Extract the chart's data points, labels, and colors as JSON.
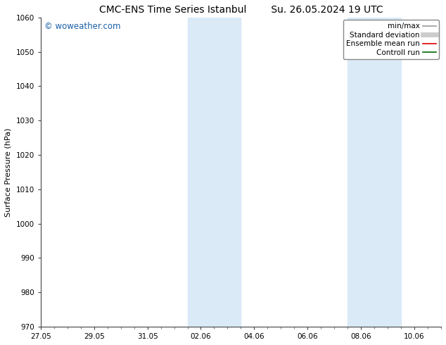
{
  "title_left": "CMC-ENS Time Series Istanbul",
  "title_right": "Su. 26.05.2024 19 UTC",
  "ylabel": "Surface Pressure (hPa)",
  "ylim": [
    970,
    1060
  ],
  "yticks": [
    970,
    980,
    990,
    1000,
    1010,
    1020,
    1030,
    1040,
    1050,
    1060
  ],
  "xtick_labels": [
    "27.05",
    "29.05",
    "31.05",
    "02.06",
    "04.06",
    "06.06",
    "08.06",
    "10.06"
  ],
  "xtick_positions": [
    0,
    2,
    4,
    6,
    8,
    10,
    12,
    14
  ],
  "xlim": [
    0,
    15
  ],
  "shaded_bands": [
    {
      "start": 5.5,
      "end": 7.5
    },
    {
      "start": 11.5,
      "end": 13.5
    }
  ],
  "shaded_color": "#daeaf7",
  "watermark_text": "© woweather.com",
  "watermark_color": "#1a5fa8",
  "legend_items": [
    {
      "label": "min/max",
      "color": "#999999",
      "lw": 1.2
    },
    {
      "label": "Standard deviation",
      "color": "#cccccc",
      "lw": 5
    },
    {
      "label": "Ensemble mean run",
      "color": "#dd0000",
      "lw": 1.2
    },
    {
      "label": "Controll run",
      "color": "#006600",
      "lw": 1.2
    }
  ],
  "bg_color": "#ffffff",
  "plot_bg_color": "#ffffff",
  "title_fontsize": 10,
  "tick_fontsize": 7.5,
  "legend_fontsize": 7.5,
  "ylabel_fontsize": 8,
  "watermark_fontsize": 8.5
}
